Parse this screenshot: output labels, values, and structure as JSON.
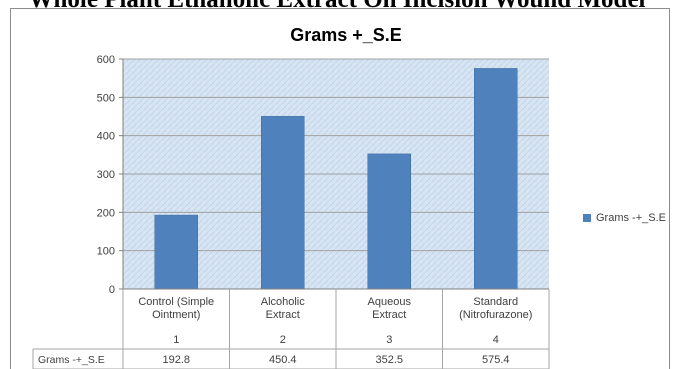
{
  "header": {
    "text": "Whole Plant Ethanolic Extract On Incision Wound Model"
  },
  "colors": {
    "bar": "#4f81bd",
    "bar_edge": "#3e6b9e",
    "plot_bg": "#d8e6f4",
    "grid": "#a0a0a0",
    "axis": "#808080",
    "text": "#404040"
  },
  "chart_data": {
    "type": "bar",
    "title": "Grams +_S.E",
    "categories": [
      "Control (Simple Ointment)",
      "Alcoholic Extract",
      "Aqueous Extract",
      "Standard (Nitrofurazone)"
    ],
    "category_lines": [
      [
        "Control (Simple",
        "Ointment)"
      ],
      [
        "Alcoholic",
        "Extract"
      ],
      [
        "Aqueous",
        "Extract"
      ],
      [
        "Standard",
        "(Nitrofurazone)"
      ]
    ],
    "category_numbers": [
      "1",
      "2",
      "3",
      "4"
    ],
    "series": [
      {
        "name": "Grams -+_S.E",
        "values": [
          192.8,
          450.4,
          352.5,
          575.4
        ]
      }
    ],
    "data_labels": [
      "192.8",
      "450.4",
      "352.5",
      "575.4"
    ],
    "ylim": [
      0,
      600
    ],
    "yticks": [
      0,
      100,
      200,
      300,
      400,
      500,
      600
    ],
    "grid": true,
    "legend": "right",
    "xlabel": "",
    "ylabel": ""
  }
}
